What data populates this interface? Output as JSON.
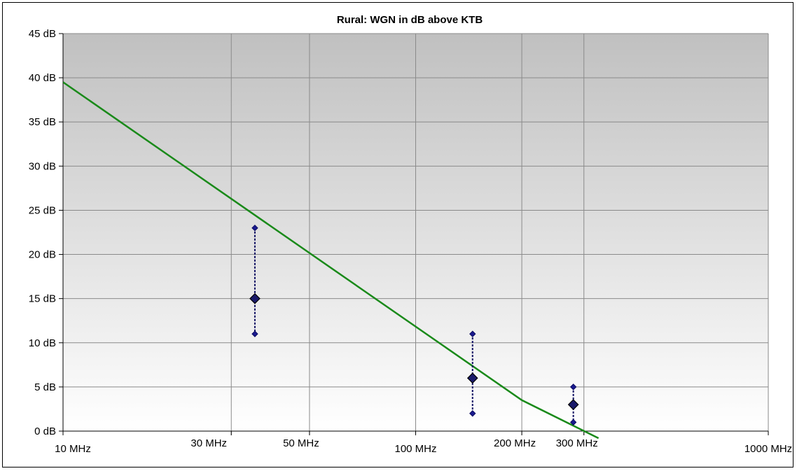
{
  "chart_data": {
    "type": "line",
    "title": "Rural: WGN in dB above KTB",
    "xscale": "log",
    "xlim": [
      10,
      1000
    ],
    "ylim": [
      0,
      45
    ],
    "grid": true,
    "background": "gradient-gray-to-white",
    "x_ticks": [
      {
        "value": 10,
        "label": "10 MHz"
      },
      {
        "value": 30,
        "label": "30 MHz"
      },
      {
        "value": 50,
        "label": "50 MHz"
      },
      {
        "value": 100,
        "label": "100 MHz"
      },
      {
        "value": 200,
        "label": "200 MHz"
      },
      {
        "value": 300,
        "label": "300 MHz"
      },
      {
        "value": 1000,
        "label": "1000 MHz"
      }
    ],
    "y_ticks": [
      {
        "value": 0,
        "label": "0 dB"
      },
      {
        "value": 5,
        "label": "5 dB"
      },
      {
        "value": 10,
        "label": "10 dB"
      },
      {
        "value": 15,
        "label": "15 dB"
      },
      {
        "value": 20,
        "label": "20 dB"
      },
      {
        "value": 25,
        "label": "25 dB"
      },
      {
        "value": 30,
        "label": "30 dB"
      },
      {
        "value": 35,
        "label": "35 dB"
      },
      {
        "value": 40,
        "label": "40 dB"
      },
      {
        "value": 45,
        "label": "45 dB"
      }
    ],
    "series": [
      {
        "type": "line",
        "color": "#1a8a1a",
        "points": [
          [
            10,
            39.5
          ],
          [
            200,
            3.5
          ],
          [
            330,
            -0.8
          ]
        ]
      },
      {
        "type": "errorbar",
        "color": "#0a0a60",
        "points": [
          {
            "x": 35,
            "y": 15,
            "low": 11,
            "high": 23
          },
          {
            "x": 145,
            "y": 6,
            "low": 2,
            "high": 11
          },
          {
            "x": 280,
            "y": 3,
            "low": 1,
            "high": 5
          }
        ]
      }
    ]
  }
}
